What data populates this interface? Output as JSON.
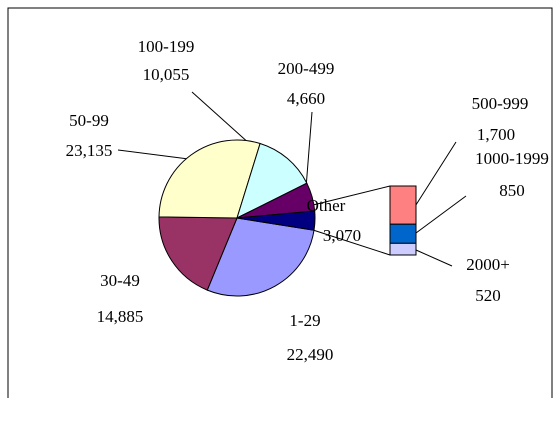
{
  "chart_data": {
    "type": "pie",
    "categories": [
      "1-29",
      "30-49",
      "50-99",
      "100-199",
      "200-499",
      "Other"
    ],
    "values": [
      22490,
      14885,
      23135,
      10055,
      4660,
      3070
    ],
    "value_labels": [
      "22,490",
      "14,885",
      "23,135",
      "10,055",
      "4,660",
      "3,070"
    ],
    "colors": [
      "#9999ff",
      "#993366",
      "#ffffcc",
      "#ccffff",
      "#660066",
      "#000080"
    ],
    "breakdown": {
      "categories": [
        "500-999",
        "1000-1999",
        "2000+"
      ],
      "values": [
        1700,
        850,
        520
      ],
      "value_labels": [
        "1,700",
        "850",
        "520"
      ],
      "colors": [
        "#ff8080",
        "#0066cc",
        "#ccccff"
      ]
    }
  }
}
